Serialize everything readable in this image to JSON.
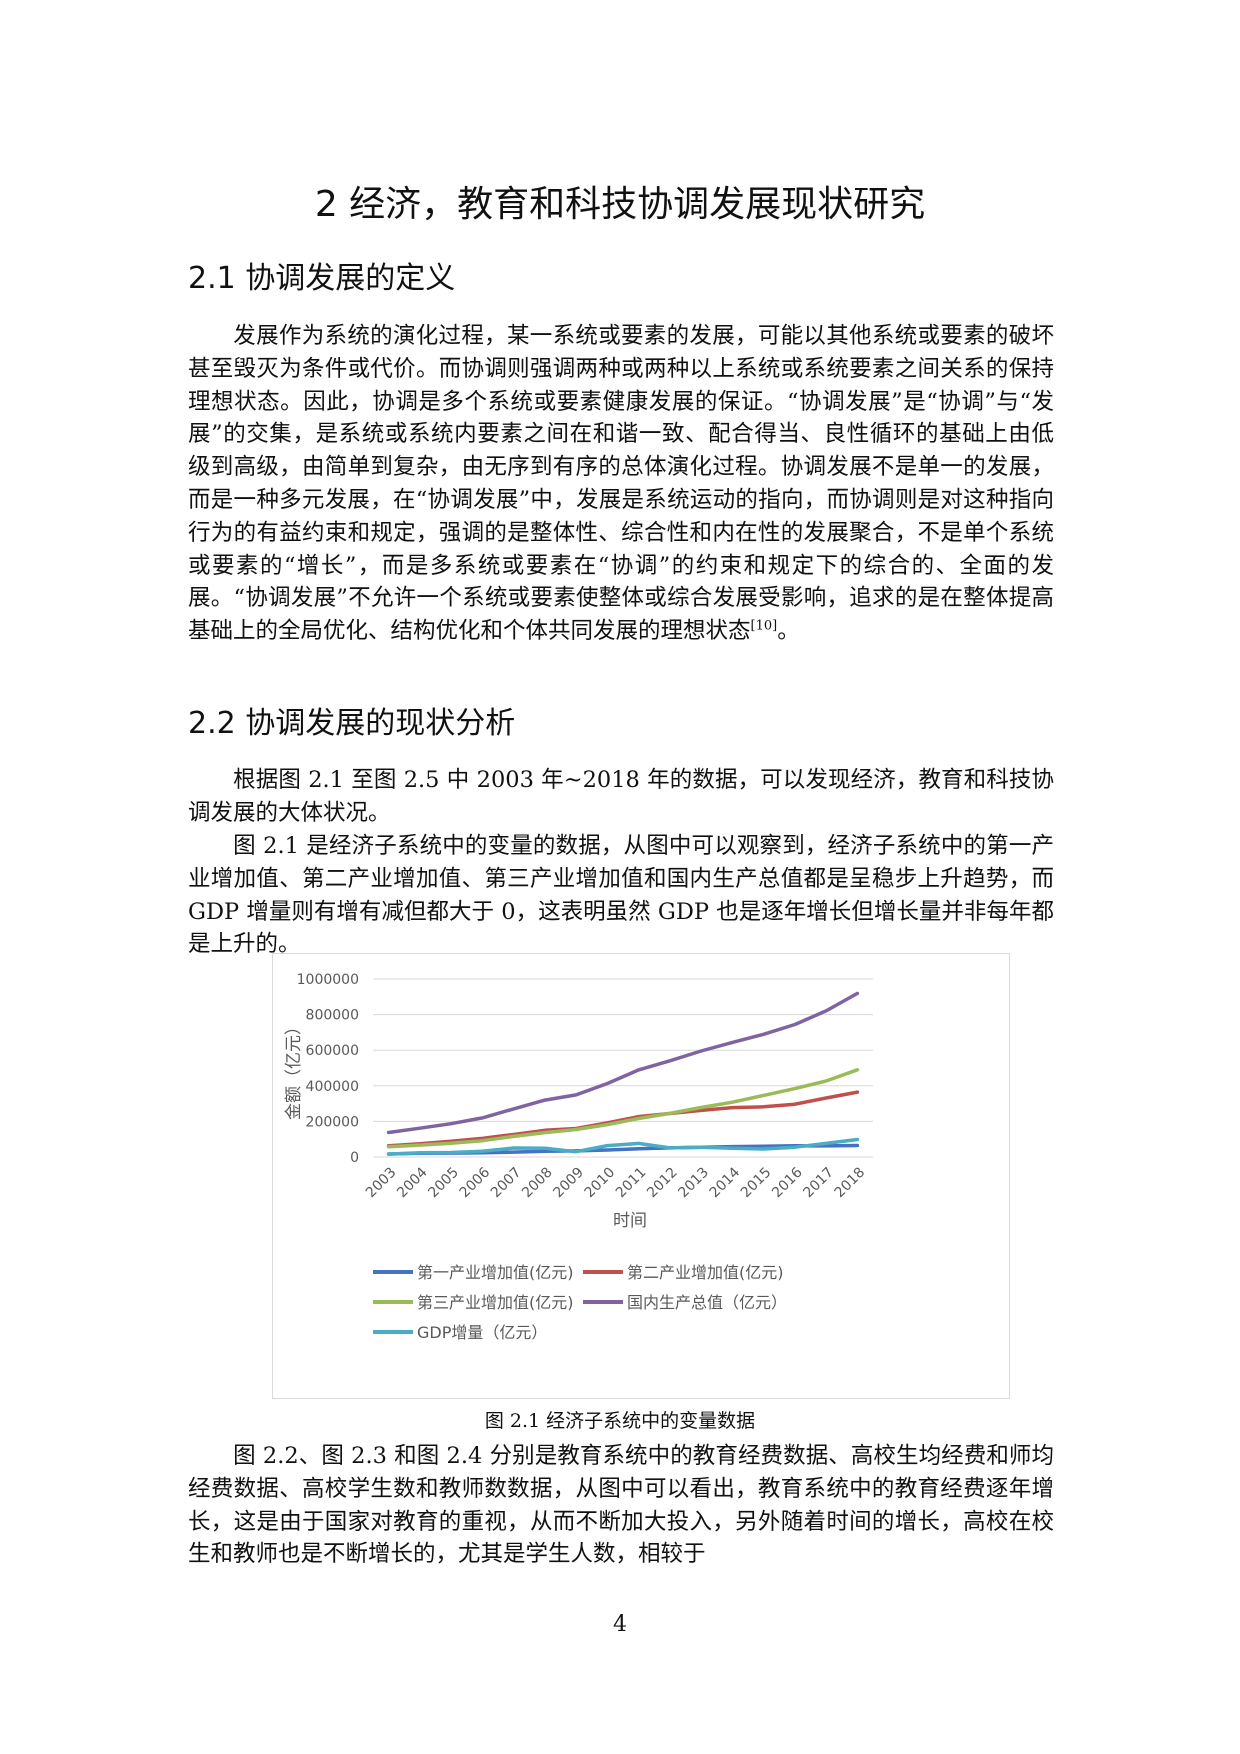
{
  "chapter_title": "2 经济，教育和科技协调发展现状研究",
  "section_1": {
    "heading": "2.1 协调发展的定义",
    "paragraph": "发展作为系统的演化过程，某一系统或要素的发展，可能以其他系统或要素的破坏甚至毁灭为条件或代价。而协调则强调两种或两种以上系统或系统要素之间关系的保持理想状态。因此，协调是多个系统或要素健康发展的保证。“协调发展”是“协调”与“发展”的交集，是系统或系统内要素之间在和谐一致、配合得当、良性循环的基础上由低级到高级，由简单到复杂，由无序到有序的总体演化过程。协调发展不是单一的发展，而是一种多元发展，在“协调发展”中，发展是系统运动的指向，而协调则是对这种指向行为的有益约束和规定，强调的是整体性、综合性和内在性的发展聚合，不是单个系统或要素的“增长”，而是多系统或要素在“协调”的约束和规定下的综合的、全面的发展。“协调发展”不允许一个系统或要素使整体或综合发展受影响，追求的是在整体提高基础上的全局优化、结构优化和个体共同发展的理想状态",
    "citation": "[10]",
    "paragraph_end": "。"
  },
  "section_2": {
    "heading": "2.2 协调发展的现状分析",
    "paragraph_1": "根据图 2.1 至图 2.5 中 2003 年~2018 年的数据，可以发现经济，教育和科技协调发展的大体状况。",
    "paragraph_2": "图 2.1 是经济子系统中的变量的数据，从图中可以观察到，经济子系统中的第一产业增加值、第二产业增加值、第三产业增加值和国内生产总值都是呈稳步上升趋势，而 GDP 增量则有增有减但都大于 0，这表明虽然 GDP 也是逐年增长但增长量并非每年都是上升的。",
    "paragraph_3": "图 2.2、图 2.3 和图 2.4 分别是教育系统中的教育经费数据、高校生均经费和师均经费数据、高校学生数和教师数数据，从图中可以看出，教育系统中的教育经费逐年增长，这是由于国家对教育的重视，从而不断加大投入，另外随着时间的增长，高校在校生和教师也是不断增长的，尤其是学生人数，相较于"
  },
  "figure_caption": "图 2.1 经济子系统中的变量数据",
  "page_number": "4",
  "chart_data": {
    "type": "line",
    "xlabel": "时间",
    "ylabel": "金额（亿元）",
    "ylim": [
      0,
      1000000
    ],
    "yticks": [
      0,
      200000,
      400000,
      600000,
      800000,
      1000000
    ],
    "grid": "horizontal",
    "legend_position": "bottom",
    "categories": [
      "2003",
      "2004",
      "2005",
      "2006",
      "2007",
      "2008",
      "2009",
      "2010",
      "2011",
      "2012",
      "2013",
      "2014",
      "2015",
      "2016",
      "2017",
      "2018"
    ],
    "series": [
      {
        "name": "第一产业增加值(亿元)",
        "color": "#4472c4",
        "values": [
          16970,
          20904,
          21807,
          23317,
          27788,
          32753,
          34161,
          39363,
          46163,
          50902,
          55329,
          58344,
          60862,
          63671,
          62100,
          64734
        ]
      },
      {
        "name": "第二产业增加值(亿元)",
        "color": "#c0504d",
        "values": [
          62697,
          74287,
          88082,
          104362,
          126631,
          149952,
          160172,
          191630,
          227039,
          244643,
          261956,
          277572,
          282040,
          296548,
          331581,
          364835
        ]
      },
      {
        "name": "第三产业增加值(亿元)",
        "color": "#9bbb59",
        "values": [
          57755,
          66651,
          77430,
          91759,
          115810,
          136805,
          154748,
          182058,
          216099,
          244822,
          277959,
          308059,
          346178,
          384221,
          427032,
          489701
        ]
      },
      {
        "name": "国内生产总值（亿元）",
        "color": "#8064a2",
        "values": [
          137422,
          161840,
          187319,
          219438,
          270232,
          319516,
          349081,
          413030,
          489301,
          540367,
          595244,
          643974,
          689052,
          744127,
          820754,
          919281
        ]
      },
      {
        "name": "GDP增量（亿元）",
        "color": "#4bacc6",
        "values": [
          16400,
          24418,
          25479,
          32119,
          50794,
          49284,
          29565,
          63949,
          76271,
          51066,
          54877,
          48730,
          45078,
          55075,
          76627,
          98527
        ]
      }
    ]
  }
}
